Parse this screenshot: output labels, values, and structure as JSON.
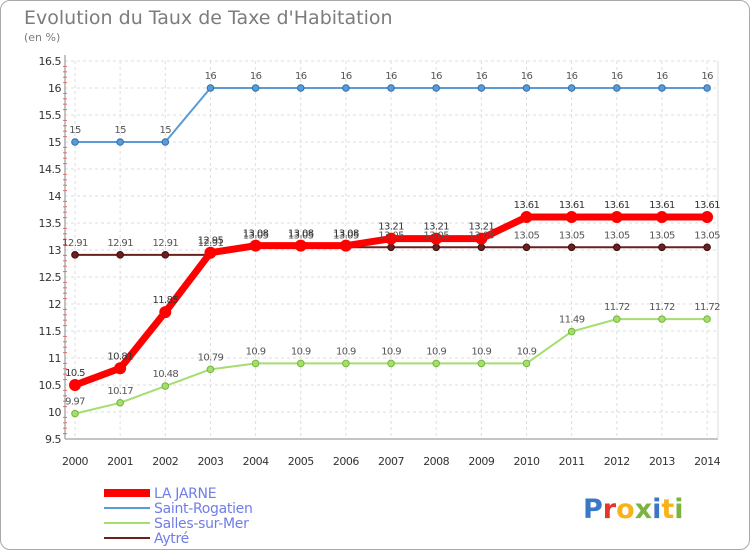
{
  "colors": {
    "LA JARNE": "#ff0000",
    "Saint-Rogatien": "#5b9bd5",
    "Salles-sur-Mer": "#a4de6e",
    "Aytré": "#6b2020"
  },
  "logo": {
    "text": "Proxiti",
    "letter_colors": [
      "#3a78c5",
      "#e8332a",
      "#f7b31b",
      "#7cb342",
      "#3a78c5",
      "#f7b31b",
      "#7cb342"
    ]
  },
  "chart_data": {
    "type": "line",
    "title": "Evolution du Taux de Taxe d'Habitation",
    "subtitle": "(en %)",
    "x": [
      "2000",
      "2001",
      "2002",
      "2003",
      "2004",
      "2005",
      "2006",
      "2007",
      "2008",
      "2009",
      "2010",
      "2011",
      "2012",
      "2013",
      "2014"
    ],
    "ylim": [
      9.5,
      16.5
    ],
    "yticks": [
      "9.5",
      "10",
      "10.5",
      "11",
      "11.5",
      "12",
      "12.5",
      "13",
      "13.5",
      "14",
      "14.5",
      "15",
      "15.5",
      "16",
      "16.5"
    ],
    "grid": true,
    "legend_position": "bottom-left",
    "series": [
      {
        "name": "LA JARNE",
        "values": [
          10.5,
          10.81,
          11.85,
          12.95,
          13.08,
          13.08,
          13.08,
          13.21,
          13.21,
          13.21,
          13.61,
          13.61,
          13.61,
          13.61,
          13.61
        ],
        "labels": [
          "10.5",
          "10.81",
          "11.85",
          "12.95",
          "13.08",
          "13.08",
          "13.08",
          "13.21",
          "13.21",
          "13.21",
          "13.61",
          "13.61",
          "13.61",
          "13.61",
          "13.61"
        ]
      },
      {
        "name": "Saint-Rogatien",
        "values": [
          15,
          15,
          15,
          16,
          16,
          16,
          16,
          16,
          16,
          16,
          16,
          16,
          16,
          16,
          16
        ],
        "labels": [
          "15",
          "15",
          "15",
          "16",
          "16",
          "16",
          "16",
          "16",
          "16",
          "16",
          "16",
          "16",
          "16",
          "16",
          "16"
        ]
      },
      {
        "name": "Salles-sur-Mer",
        "values": [
          9.97,
          10.17,
          10.48,
          10.79,
          10.9,
          10.9,
          10.9,
          10.9,
          10.9,
          10.9,
          10.9,
          11.49,
          11.72,
          11.72,
          11.72
        ],
        "labels": [
          "9.97",
          "10.17",
          "10.48",
          "10.79",
          "10.9",
          "10.9",
          "10.9",
          "10.9",
          "10.9",
          "10.9",
          "10.9",
          "11.49",
          "11.72",
          "11.72",
          "11.72"
        ]
      },
      {
        "name": "Aytré",
        "values": [
          12.91,
          12.91,
          12.91,
          12.91,
          13.05,
          13.05,
          13.05,
          13.05,
          13.05,
          13.05,
          13.05,
          13.05,
          13.05,
          13.05,
          13.05
        ],
        "labels": [
          "12.91",
          "12.91",
          "12.91",
          "12.91",
          "13.05",
          "13.05",
          "13.05",
          "13.05",
          "13.05",
          "13.05",
          "13.05",
          "13.05",
          "13.05",
          "13.05",
          "13.05"
        ]
      }
    ]
  }
}
